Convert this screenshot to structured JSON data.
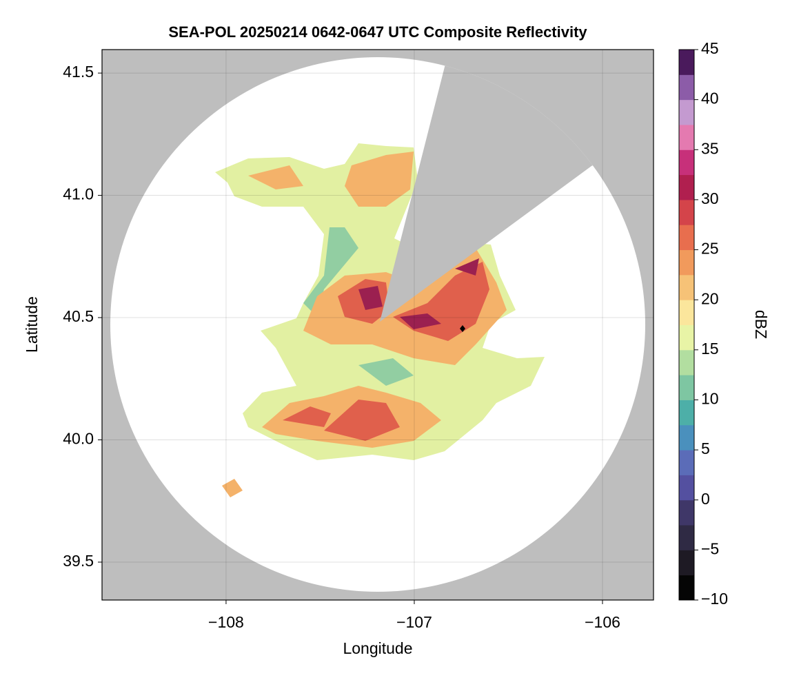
{
  "chart_data": {
    "type": "heatmap",
    "title": "SEA-POL 20250214 0642-0647 UTC Composite Reflectivity",
    "xlabel": "Longitude",
    "ylabel": "Latitude",
    "xlim": [
      -108.659,
      -105.729
    ],
    "xticks": [
      {
        "value": -108,
        "label": "−108"
      },
      {
        "value": -107,
        "label": "−107"
      },
      {
        "value": -106,
        "label": "−106"
      }
    ],
    "ylim": [
      39.345,
      41.596
    ],
    "yticks": [
      39.5,
      {
        "value": 40.0,
        "label": "40.0"
      },
      40.5,
      {
        "value": 41.0,
        "label": "41.0"
      },
      41.5
    ],
    "grid": true,
    "colorbar": {
      "label": "dBZ",
      "lim": [
        -10,
        45
      ],
      "ticks": [
        {
          "value": -10,
          "label": "−10"
        },
        {
          "value": -5,
          "label": "−5"
        },
        0,
        5,
        10,
        15,
        20,
        25,
        30,
        35,
        40,
        45
      ],
      "colors": [
        "#050505",
        "#1e1a24",
        "#2f2a44",
        "#3f3768",
        "#5450a0",
        "#5b6cb8",
        "#4a90bd",
        "#4dafa8",
        "#7ec6a2",
        "#b2dea0",
        "#e8f4a6",
        "#fbe69c",
        "#f6c277",
        "#f19a5c",
        "#e86e4e",
        "#d4444a",
        "#b01f4f",
        "#c7307a",
        "#e47ab0",
        "#c49ad0",
        "#8c5ca8",
        "#4a1a5c"
      ]
    }
  }
}
